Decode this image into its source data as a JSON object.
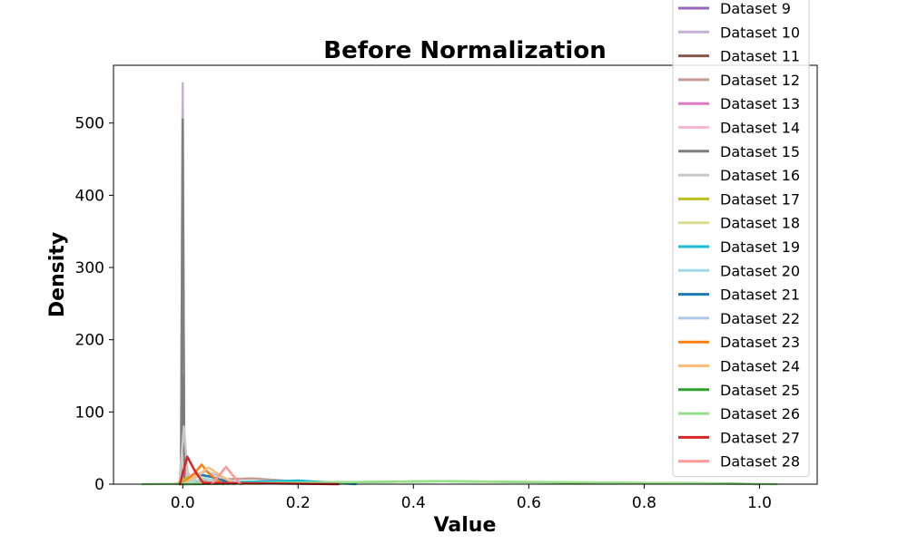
{
  "chart_data": {
    "type": "line",
    "title": "Before Normalization",
    "xlabel": "Value",
    "ylabel": "Density",
    "xlim": [
      -0.12,
      1.1
    ],
    "ylim": [
      0,
      580
    ],
    "xticks": [
      0.0,
      0.2,
      0.4,
      0.6,
      0.8,
      1.0
    ],
    "xtick_labels": [
      "0.0",
      "0.2",
      "0.4",
      "0.6",
      "0.8",
      "1.0"
    ],
    "yticks": [
      0,
      100,
      200,
      300,
      400,
      500
    ],
    "ytick_labels": [
      "0",
      "100",
      "200",
      "300",
      "400",
      "500"
    ],
    "grid": false,
    "legend_position": "top-right",
    "series": [
      {
        "name": "Dataset 9",
        "color": "#9467bd",
        "x": [
          -0.006,
          0.0,
          0.006
        ],
        "y": [
          0,
          3,
          0
        ]
      },
      {
        "name": "Dataset 10",
        "color": "#c5b0d5",
        "x": [
          -0.003,
          0.0,
          0.003
        ],
        "y": [
          0,
          555,
          0
        ]
      },
      {
        "name": "Dataset 11",
        "color": "#8c564b",
        "x": [
          -0.004,
          0.0,
          0.004
        ],
        "y": [
          0,
          150,
          0
        ]
      },
      {
        "name": "Dataset 12",
        "color": "#c49c94",
        "x": [
          -0.02,
          0.05,
          0.12,
          0.19,
          0.26
        ],
        "y": [
          0,
          6,
          8,
          4,
          0
        ]
      },
      {
        "name": "Dataset 13",
        "color": "#e377c2",
        "x": [
          -0.006,
          0.002,
          0.01
        ],
        "y": [
          0,
          20,
          0
        ]
      },
      {
        "name": "Dataset 14",
        "color": "#f7b6d2",
        "x": [
          -0.01,
          0.01,
          0.03
        ],
        "y": [
          0,
          15,
          0
        ]
      },
      {
        "name": "Dataset 15",
        "color": "#7f7f7f",
        "x": [
          -0.003,
          0.0,
          0.003
        ],
        "y": [
          0,
          505,
          0
        ]
      },
      {
        "name": "Dataset 16",
        "color": "#c7c7c7",
        "x": [
          -0.006,
          0.002,
          0.01
        ],
        "y": [
          0,
          80,
          0
        ]
      },
      {
        "name": "Dataset 17",
        "color": "#bcbd22",
        "x": [
          -0.01,
          0.01,
          0.03
        ],
        "y": [
          0,
          10,
          0
        ]
      },
      {
        "name": "Dataset 18",
        "color": "#dbdb8d",
        "x": [
          0.0,
          0.03,
          0.06
        ],
        "y": [
          0,
          12,
          0
        ]
      },
      {
        "name": "Dataset 19",
        "color": "#17becf",
        "x": [
          0.02,
          0.1,
          0.2,
          0.3
        ],
        "y": [
          0,
          3,
          5,
          0
        ]
      },
      {
        "name": "Dataset 20",
        "color": "#9edae5",
        "x": [
          0.0,
          0.04,
          0.08
        ],
        "y": [
          0,
          8,
          0
        ]
      },
      {
        "name": "Dataset 21",
        "color": "#1f77b4",
        "x": [
          0.0,
          0.02,
          0.05,
          0.09
        ],
        "y": [
          0,
          15,
          10,
          0
        ]
      },
      {
        "name": "Dataset 22",
        "color": "#aec7e8",
        "x": [
          0.0,
          0.04,
          0.1
        ],
        "y": [
          0,
          18,
          0
        ]
      },
      {
        "name": "Dataset 23",
        "color": "#ff7f0e",
        "x": [
          0.0,
          0.02,
          0.033,
          0.045,
          0.07
        ],
        "y": [
          0,
          15,
          27,
          15,
          0
        ]
      },
      {
        "name": "Dataset 24",
        "color": "#ffbb78",
        "x": [
          0.0,
          0.03,
          0.045,
          0.06,
          0.09
        ],
        "y": [
          0,
          15,
          23,
          15,
          0
        ]
      },
      {
        "name": "Dataset 25",
        "color": "#2ca02c",
        "x": [
          0.0,
          0.2,
          0.45,
          0.7,
          0.95,
          1.0
        ],
        "y": [
          0,
          2,
          4,
          2,
          1,
          0
        ]
      },
      {
        "name": "Dataset 26",
        "color": "#98df8a",
        "x": [
          -0.07,
          0.2,
          0.45,
          0.75,
          1.03
        ],
        "y": [
          0,
          2,
          4,
          2,
          0
        ]
      },
      {
        "name": "Dataset 27",
        "color": "#d62728",
        "x": [
          -0.005,
          0.008,
          0.02,
          0.035,
          0.27
        ],
        "y": [
          0,
          38,
          20,
          2,
          0
        ]
      },
      {
        "name": "Dataset 28",
        "color": "#ff9896",
        "x": [
          0.05,
          0.065,
          0.075,
          0.085,
          0.1
        ],
        "y": [
          0,
          14,
          24,
          14,
          0
        ]
      }
    ]
  }
}
